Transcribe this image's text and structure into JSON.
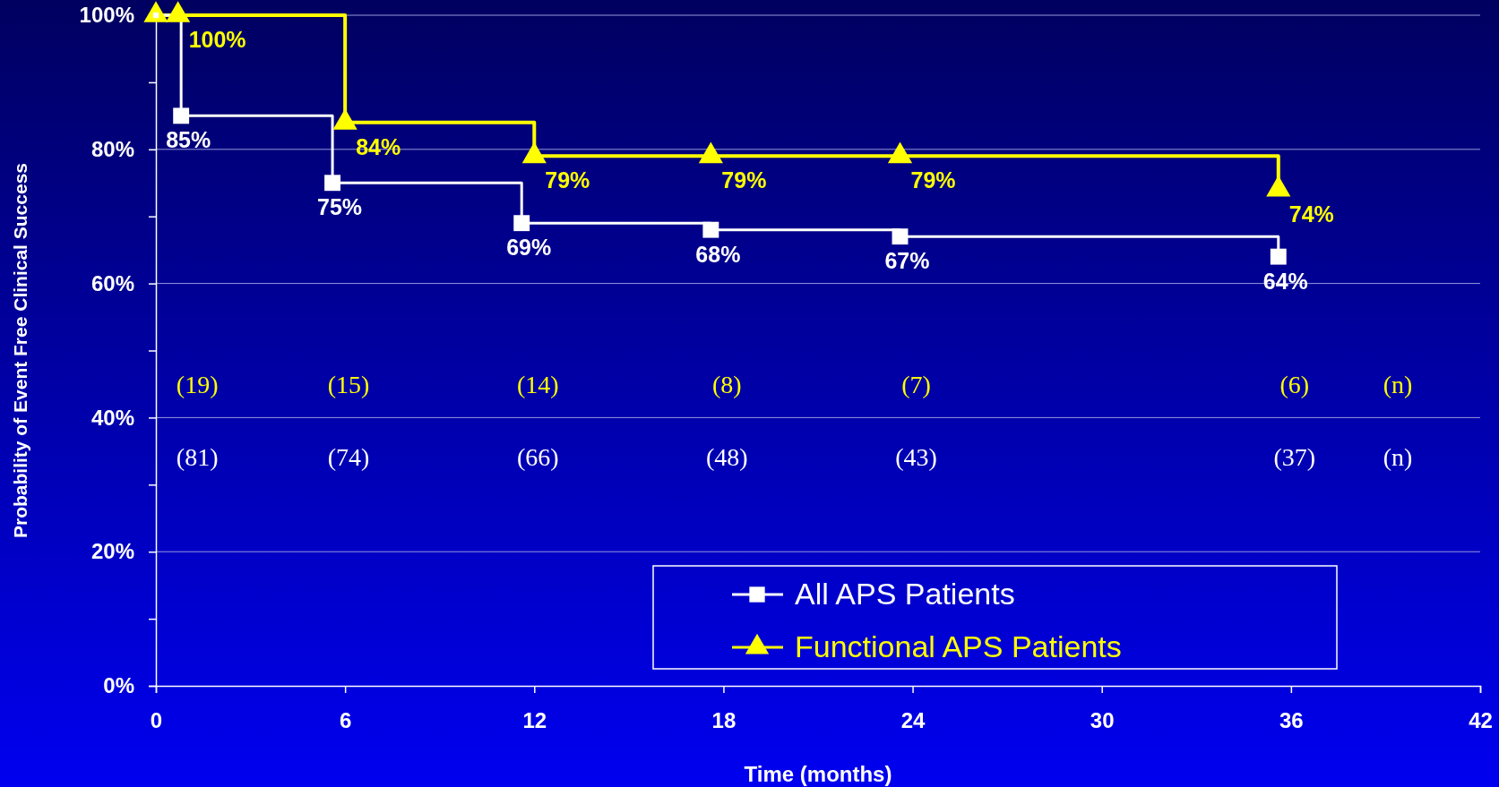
{
  "chart_data": {
    "type": "step",
    "xlabel": "Time (months)",
    "ylabel": "Probability of Event Free Clinical Success",
    "xlim": [
      0,
      42
    ],
    "xticks": [
      0,
      6,
      12,
      18,
      24,
      30,
      36,
      42
    ],
    "ylim": [
      0,
      100
    ],
    "yticks": [
      {
        "value": 0,
        "label": "0%"
      },
      {
        "value": 10,
        "label": null
      },
      {
        "value": 20,
        "label": "20%"
      },
      {
        "value": 30,
        "label": null
      },
      {
        "value": 40,
        "label": "40%"
      },
      {
        "value": 50,
        "label": null
      },
      {
        "value": 60,
        "label": "60%"
      },
      {
        "value": 70,
        "label": null
      },
      {
        "value": 80,
        "label": "80%"
      },
      {
        "value": 90,
        "label": null
      },
      {
        "value": 100,
        "label": "100%"
      }
    ],
    "grid": "y",
    "legend": "bottom right",
    "series": [
      {
        "name": "All APS Patients",
        "color": "#ffffff",
        "marker": "square",
        "x": [
          0,
          0.8,
          5.6,
          11.6,
          17.6,
          23.6,
          35.6
        ],
        "values": [
          100,
          85,
          75,
          69,
          68,
          67,
          64
        ],
        "value_labels": [
          null,
          "85%",
          "75%",
          "69%",
          "68%",
          "67%",
          "64%"
        ]
      },
      {
        "name": "Functional APS Patients",
        "color": "#ffff00",
        "marker": "triangle",
        "x": [
          0,
          0.7,
          6,
          12,
          17.6,
          23.6,
          35.6
        ],
        "values": [
          100,
          100,
          84,
          79,
          79,
          79,
          74
        ],
        "value_labels": [
          null,
          "100%",
          "84%",
          "79%",
          "79%",
          "79%",
          "74%"
        ]
      }
    ],
    "annotations": [
      "(19)",
      "(15)",
      "(14)",
      "(8)",
      "(7)",
      "(6)",
      "(n)",
      "(81)",
      "(74)",
      "(66)",
      "(48)",
      "(43)",
      "(37)",
      "(n)"
    ]
  }
}
